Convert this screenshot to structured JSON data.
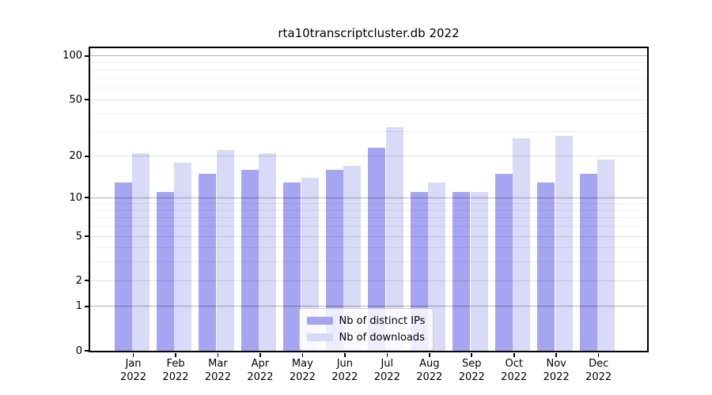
{
  "title": "rta10transcriptcluster.db 2022",
  "chart_data": {
    "type": "bar",
    "title": "rta10transcriptcluster.db 2022",
    "categories": [
      "Jan",
      "Feb",
      "Mar",
      "Apr",
      "May",
      "Jun",
      "Jul",
      "Aug",
      "Sep",
      "Oct",
      "Nov",
      "Dec"
    ],
    "x_tick_second_line": "2022",
    "series": [
      {
        "name": "Nb of distinct IPs",
        "color": "#a5a5f2",
        "values": [
          13,
          11,
          15,
          16,
          13,
          16,
          23,
          11,
          11,
          15,
          13,
          15
        ]
      },
      {
        "name": "Nb of downloads",
        "color": "#d9d9f8",
        "values": [
          21,
          18,
          22,
          21,
          14,
          17,
          32,
          13,
          11,
          27,
          28,
          19
        ]
      }
    ],
    "xlabel": "",
    "ylabel": "",
    "y_scale": "log10(1+y)",
    "y_major_ticks": [
      0,
      1,
      2,
      5,
      10,
      20,
      50,
      100
    ],
    "y_minor_ticks": [
      3,
      4,
      6,
      7,
      8,
      9,
      30,
      40,
      60,
      70,
      80,
      90
    ],
    "ylim": [
      0,
      115
    ],
    "grid": "on",
    "grid_on_top_of_bars": true,
    "legend_position": "lower center"
  },
  "colors": {
    "spine": "#000000",
    "grid_decade": "rgba(0,0,0,0.30)",
    "grid_mid": "rgba(0,0,0,0.12)",
    "grid_minor": "rgba(0,0,0,0.06)",
    "legend_border": "#cccccc",
    "legend_background": "rgba(255,255,255,0.8)"
  }
}
